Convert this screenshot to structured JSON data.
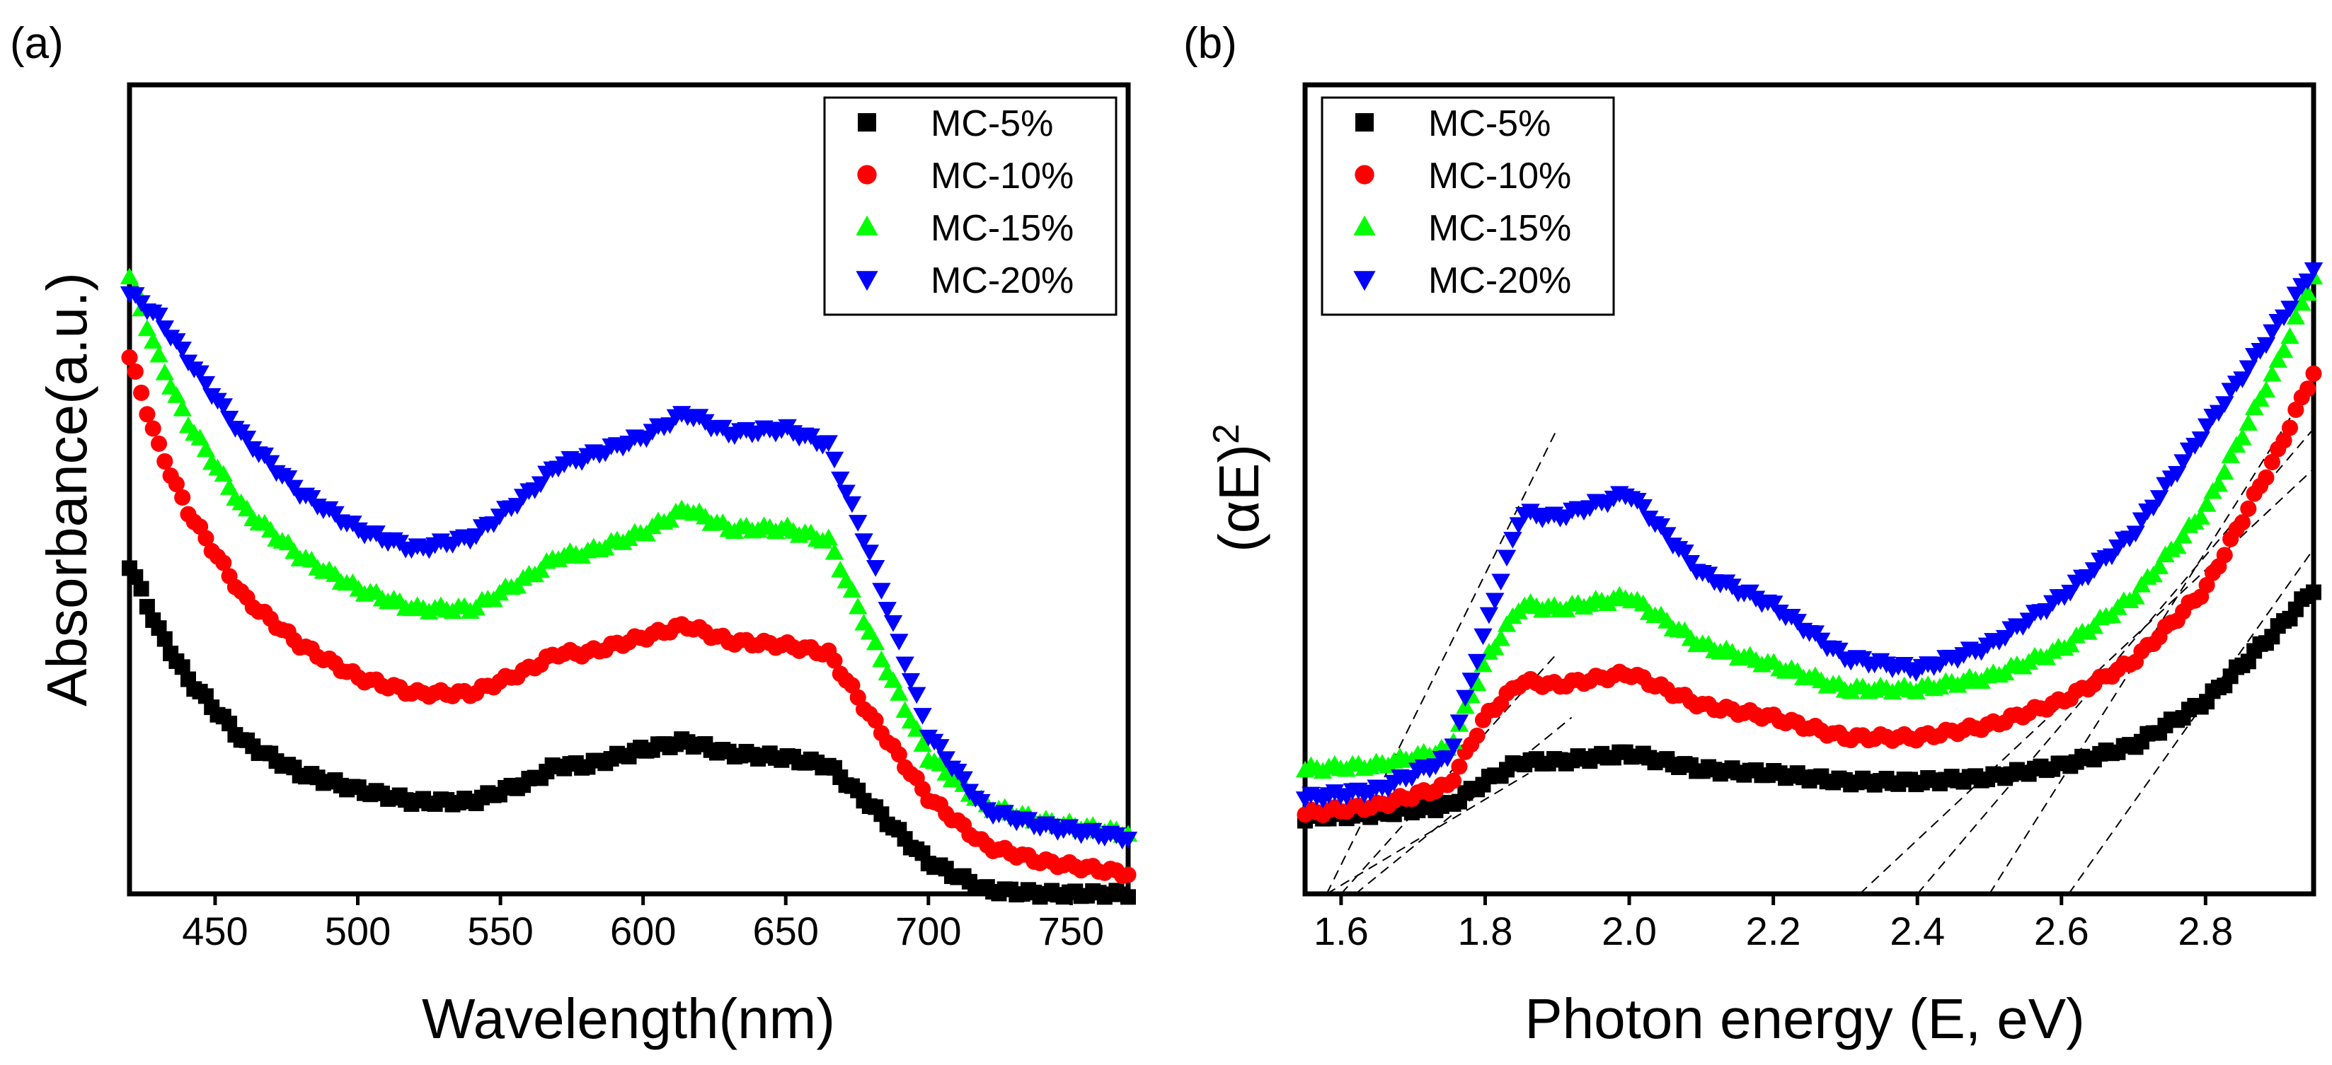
{
  "figure": {
    "panel_a_label": "(a)",
    "panel_b_label": "(b)"
  },
  "chart_data": [
    {
      "type": "scatter",
      "panel": "(a)",
      "xlabel": "Wavelength(nm)",
      "ylabel": "Absorbance(a.u.)",
      "xlim": [
        420,
        770
      ],
      "ylim": [
        0,
        1.0
      ],
      "yticks_shown": false,
      "xticks": [
        450,
        500,
        550,
        600,
        650,
        700,
        750
      ],
      "legend_position": "top-right",
      "series": [
        {
          "name": "MC-5%",
          "color": "#000000",
          "marker": "square",
          "x": [
            420,
            430,
            440,
            460,
            480,
            500,
            520,
            540,
            560,
            570,
            580,
            600,
            615,
            630,
            650,
            665,
            680,
            700,
            720,
            740,
            760,
            770
          ],
          "y": [
            0.41,
            0.33,
            0.27,
            0.19,
            0.15,
            0.13,
            0.115,
            0.115,
            0.14,
            0.16,
            0.16,
            0.18,
            0.19,
            0.175,
            0.17,
            0.16,
            0.11,
            0.04,
            0.005,
            0.0,
            0.0,
            0.0
          ]
        },
        {
          "name": "MC-10%",
          "color": "#ff0000",
          "marker": "circle",
          "x": [
            420,
            430,
            440,
            460,
            480,
            500,
            520,
            540,
            560,
            570,
            580,
            600,
            615,
            630,
            650,
            665,
            680,
            700,
            720,
            740,
            760,
            770
          ],
          "y": [
            0.67,
            0.56,
            0.48,
            0.37,
            0.31,
            0.27,
            0.25,
            0.25,
            0.28,
            0.3,
            0.3,
            0.32,
            0.335,
            0.315,
            0.31,
            0.3,
            0.22,
            0.12,
            0.06,
            0.04,
            0.03,
            0.025
          ]
        },
        {
          "name": "MC-15%",
          "color": "#00ff00",
          "marker": "triangle-up",
          "x": [
            420,
            430,
            440,
            460,
            480,
            500,
            520,
            540,
            560,
            570,
            580,
            600,
            615,
            630,
            650,
            665,
            680,
            700,
            720,
            740,
            760,
            770
          ],
          "y": [
            0.77,
            0.67,
            0.59,
            0.48,
            0.42,
            0.38,
            0.355,
            0.355,
            0.395,
            0.42,
            0.425,
            0.45,
            0.48,
            0.455,
            0.455,
            0.44,
            0.32,
            0.17,
            0.11,
            0.09,
            0.08,
            0.075
          ]
        },
        {
          "name": "MC-20%",
          "color": "#0000ff",
          "marker": "triangle-down",
          "x": [
            420,
            430,
            440,
            460,
            480,
            500,
            520,
            540,
            560,
            570,
            580,
            600,
            615,
            630,
            650,
            665,
            680,
            700,
            720,
            740,
            760,
            770
          ],
          "y": [
            0.75,
            0.72,
            0.67,
            0.57,
            0.5,
            0.455,
            0.43,
            0.445,
            0.5,
            0.535,
            0.545,
            0.57,
            0.6,
            0.575,
            0.58,
            0.56,
            0.42,
            0.2,
            0.105,
            0.085,
            0.075,
            0.07
          ]
        }
      ]
    },
    {
      "type": "scatter",
      "panel": "(b)",
      "xlabel": "Photon energy (E, eV)",
      "ylabel": "(αE)",
      "ylabel_superscript": "2",
      "xlim": [
        1.55,
        2.95
      ],
      "ylim": [
        0,
        1.0
      ],
      "yticks_shown": false,
      "xticks": [
        "1.6",
        "1.8",
        "2.0",
        "2.2",
        "2.4",
        "2.6",
        "2.8"
      ],
      "legend_position": "top-left",
      "series": [
        {
          "name": "MC-5%",
          "color": "#000000",
          "marker": "square",
          "x": [
            1.55,
            1.65,
            1.75,
            1.8,
            1.85,
            1.9,
            2.0,
            2.1,
            2.2,
            2.3,
            2.4,
            2.5,
            2.6,
            2.7,
            2.8,
            2.9,
            2.95
          ],
          "y": [
            0.095,
            0.1,
            0.11,
            0.14,
            0.165,
            0.165,
            0.175,
            0.155,
            0.15,
            0.14,
            0.14,
            0.145,
            0.16,
            0.185,
            0.24,
            0.33,
            0.38
          ]
        },
        {
          "name": "MC-10%",
          "color": "#ff0000",
          "marker": "circle",
          "x": [
            1.55,
            1.65,
            1.75,
            1.8,
            1.85,
            1.9,
            2.0,
            2.1,
            2.2,
            2.3,
            2.4,
            2.5,
            2.6,
            2.7,
            2.8,
            2.9,
            2.95
          ],
          "y": [
            0.1,
            0.11,
            0.135,
            0.22,
            0.265,
            0.26,
            0.275,
            0.235,
            0.22,
            0.195,
            0.195,
            0.21,
            0.24,
            0.29,
            0.38,
            0.55,
            0.65
          ]
        },
        {
          "name": "MC-15%",
          "color": "#00ff00",
          "marker": "triangle-up",
          "x": [
            1.55,
            1.65,
            1.75,
            1.8,
            1.85,
            1.9,
            2.0,
            2.1,
            2.2,
            2.3,
            2.4,
            2.5,
            2.6,
            2.7,
            2.8,
            2.9,
            2.95
          ],
          "y": [
            0.155,
            0.16,
            0.18,
            0.29,
            0.36,
            0.355,
            0.37,
            0.31,
            0.285,
            0.255,
            0.255,
            0.27,
            0.305,
            0.37,
            0.48,
            0.66,
            0.77
          ]
        },
        {
          "name": "MC-20%",
          "color": "#0000ff",
          "marker": "triangle-down",
          "x": [
            1.55,
            1.65,
            1.75,
            1.8,
            1.85,
            1.9,
            2.0,
            2.1,
            2.2,
            2.3,
            2.4,
            2.5,
            2.6,
            2.7,
            2.8,
            2.9,
            2.95
          ],
          "y": [
            0.12,
            0.13,
            0.17,
            0.33,
            0.475,
            0.47,
            0.5,
            0.4,
            0.36,
            0.295,
            0.28,
            0.31,
            0.37,
            0.45,
            0.58,
            0.71,
            0.78
          ]
        }
      ],
      "tangent_lines": [
        {
          "style": "dashed",
          "x": [
            1.58,
            1.9
          ],
          "y": [
            0.0,
            0.58
          ]
        },
        {
          "style": "dashed",
          "x": [
            1.6,
            1.9
          ],
          "y": [
            0.0,
            0.3
          ]
        },
        {
          "style": "dashed",
          "x": [
            1.62,
            1.92
          ],
          "y": [
            0.0,
            0.22
          ]
        },
        {
          "style": "dashed",
          "x": [
            1.58,
            1.86
          ],
          "y": [
            0.0,
            0.15
          ]
        },
        {
          "style": "dashed",
          "x": [
            2.32,
            2.95
          ],
          "y": [
            0.0,
            0.53
          ]
        },
        {
          "style": "dashed",
          "x": [
            2.4,
            2.95
          ],
          "y": [
            0.0,
            0.58
          ]
        },
        {
          "style": "dashed",
          "x": [
            2.5,
            2.95
          ],
          "y": [
            0.0,
            0.64
          ]
        },
        {
          "style": "dashed",
          "x": [
            2.61,
            2.95
          ],
          "y": [
            0.0,
            0.43
          ]
        }
      ]
    }
  ]
}
